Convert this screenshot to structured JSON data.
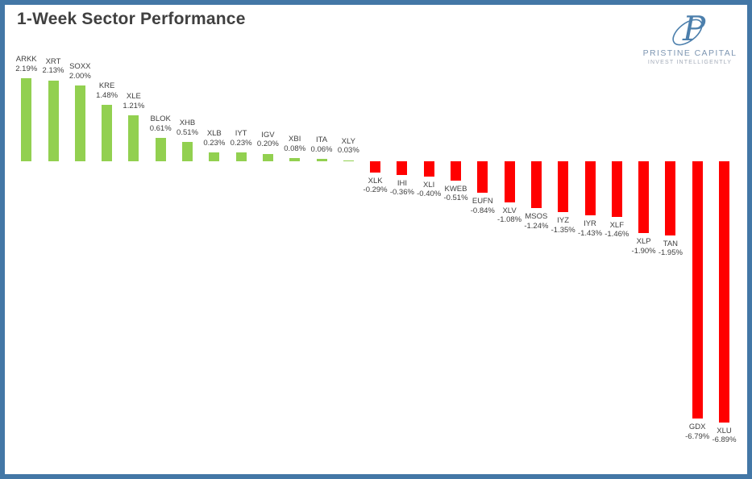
{
  "header": {
    "title": "1-Week Sector Performance"
  },
  "logo": {
    "monogram": "P",
    "name": "PRISTINE CAPITAL",
    "tagline": "INVEST INTELLIGENTLY"
  },
  "colors": {
    "border": "#4377a6",
    "title_text": "#404040",
    "label_text": "#3f3f3f",
    "positive_bar": "#92d050",
    "negative_bar": "#ff0000",
    "logo_monogram": "#4c7fac",
    "logo_name": "#7e96b2",
    "logo_tagline": "#a3abb8"
  },
  "chart_data": {
    "type": "bar",
    "title": "1-Week Sector Performance",
    "orientation": "vertical",
    "axes_hidden": true,
    "grid": false,
    "legend": "none",
    "value_label_position": "outside-end",
    "ylim": [
      -7.5,
      2.5
    ],
    "categories": [
      "ARKK",
      "XRT",
      "SOXX",
      "KRE",
      "XLE",
      "BLOK",
      "XHB",
      "XLB",
      "IYT",
      "IGV",
      "XBI",
      "ITA",
      "XLY",
      "XLK",
      "IHI",
      "XLI",
      "KWEB",
      "EUFN",
      "XLV",
      "MSOS",
      "IYZ",
      "IYR",
      "XLF",
      "XLP",
      "TAN",
      "GDX",
      "XLU"
    ],
    "values": [
      2.19,
      2.13,
      2.0,
      1.48,
      1.21,
      0.61,
      0.51,
      0.23,
      0.23,
      0.2,
      0.08,
      0.06,
      0.03,
      -0.29,
      -0.36,
      -0.4,
      -0.51,
      -0.84,
      -1.08,
      -1.24,
      -1.35,
      -1.43,
      -1.46,
      -1.9,
      -1.95,
      -6.79,
      -6.89
    ],
    "labels": [
      "2.19%",
      "2.13%",
      "2.00%",
      "1.48%",
      "1.21%",
      "0.61%",
      "0.51%",
      "0.23%",
      "0.23%",
      "0.20%",
      "0.08%",
      "0.06%",
      "0.03%",
      "-0.29%",
      "-0.36%",
      "-0.40%",
      "-0.51%",
      "-0.84%",
      "-1.08%",
      "-1.24%",
      "-1.35%",
      "-1.43%",
      "-1.46%",
      "-1.90%",
      "-1.95%",
      "-6.79%",
      "-6.89%"
    ]
  }
}
